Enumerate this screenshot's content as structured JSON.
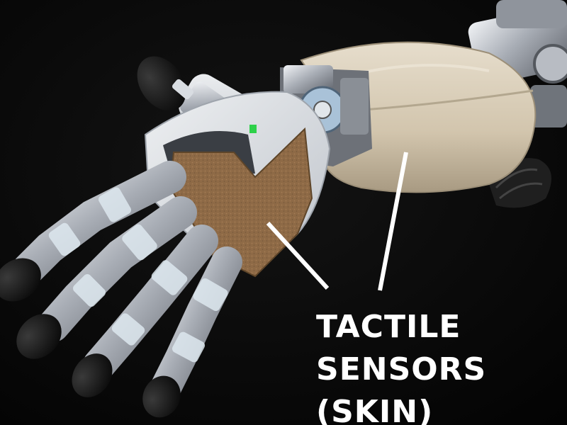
{
  "annotation": {
    "lines": [
      "TACTILE",
      "SENSORS",
      "(SKIN)"
    ],
    "text_color": "#ffffff",
    "pointer_color": "#ffffff"
  },
  "scene": {
    "background_color": "#060606",
    "skin_pad_color": "#8e6a46",
    "forearm_cover_color": "#d9cdb8",
    "metal_color": "#c8ccd2",
    "fingertip_color": "#1a1a1a"
  }
}
